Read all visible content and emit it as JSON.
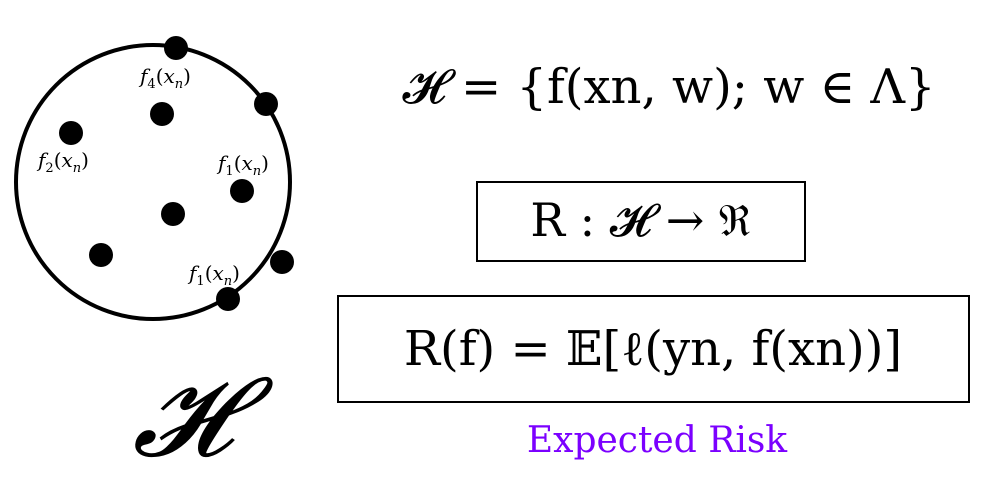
{
  "diagram": {
    "hypothesis_space_symbol": "𝓗",
    "points": [
      {
        "label": "f4(xn)",
        "func": "f",
        "sub": "4",
        "arg": "x",
        "argsub": "n"
      },
      {
        "label": ""
      },
      {
        "label": ""
      },
      {
        "label": "f2(xn)",
        "func": "f",
        "sub": "2",
        "arg": "x",
        "argsub": "n"
      },
      {
        "label": "f1(xn)",
        "func": "f",
        "sub": "1",
        "arg": "x",
        "argsub": "n"
      },
      {
        "label": ""
      },
      {
        "label": ""
      },
      {
        "label": ""
      },
      {
        "label": "f1(xn)",
        "func": "f",
        "sub": "1",
        "arg": "x",
        "argsub": "n"
      }
    ],
    "equations": {
      "hypothesis_set": "𝓗 = {f(xn, w); w ∈ Λ}",
      "risk_map": "R : 𝓗 → ℜ",
      "expected_risk": "R(f) = 𝔼[ℓ(yn, f(xn))]"
    },
    "caption": "Expected Risk",
    "colors": {
      "ink": "#000000",
      "caption": "#7b00ff"
    }
  }
}
